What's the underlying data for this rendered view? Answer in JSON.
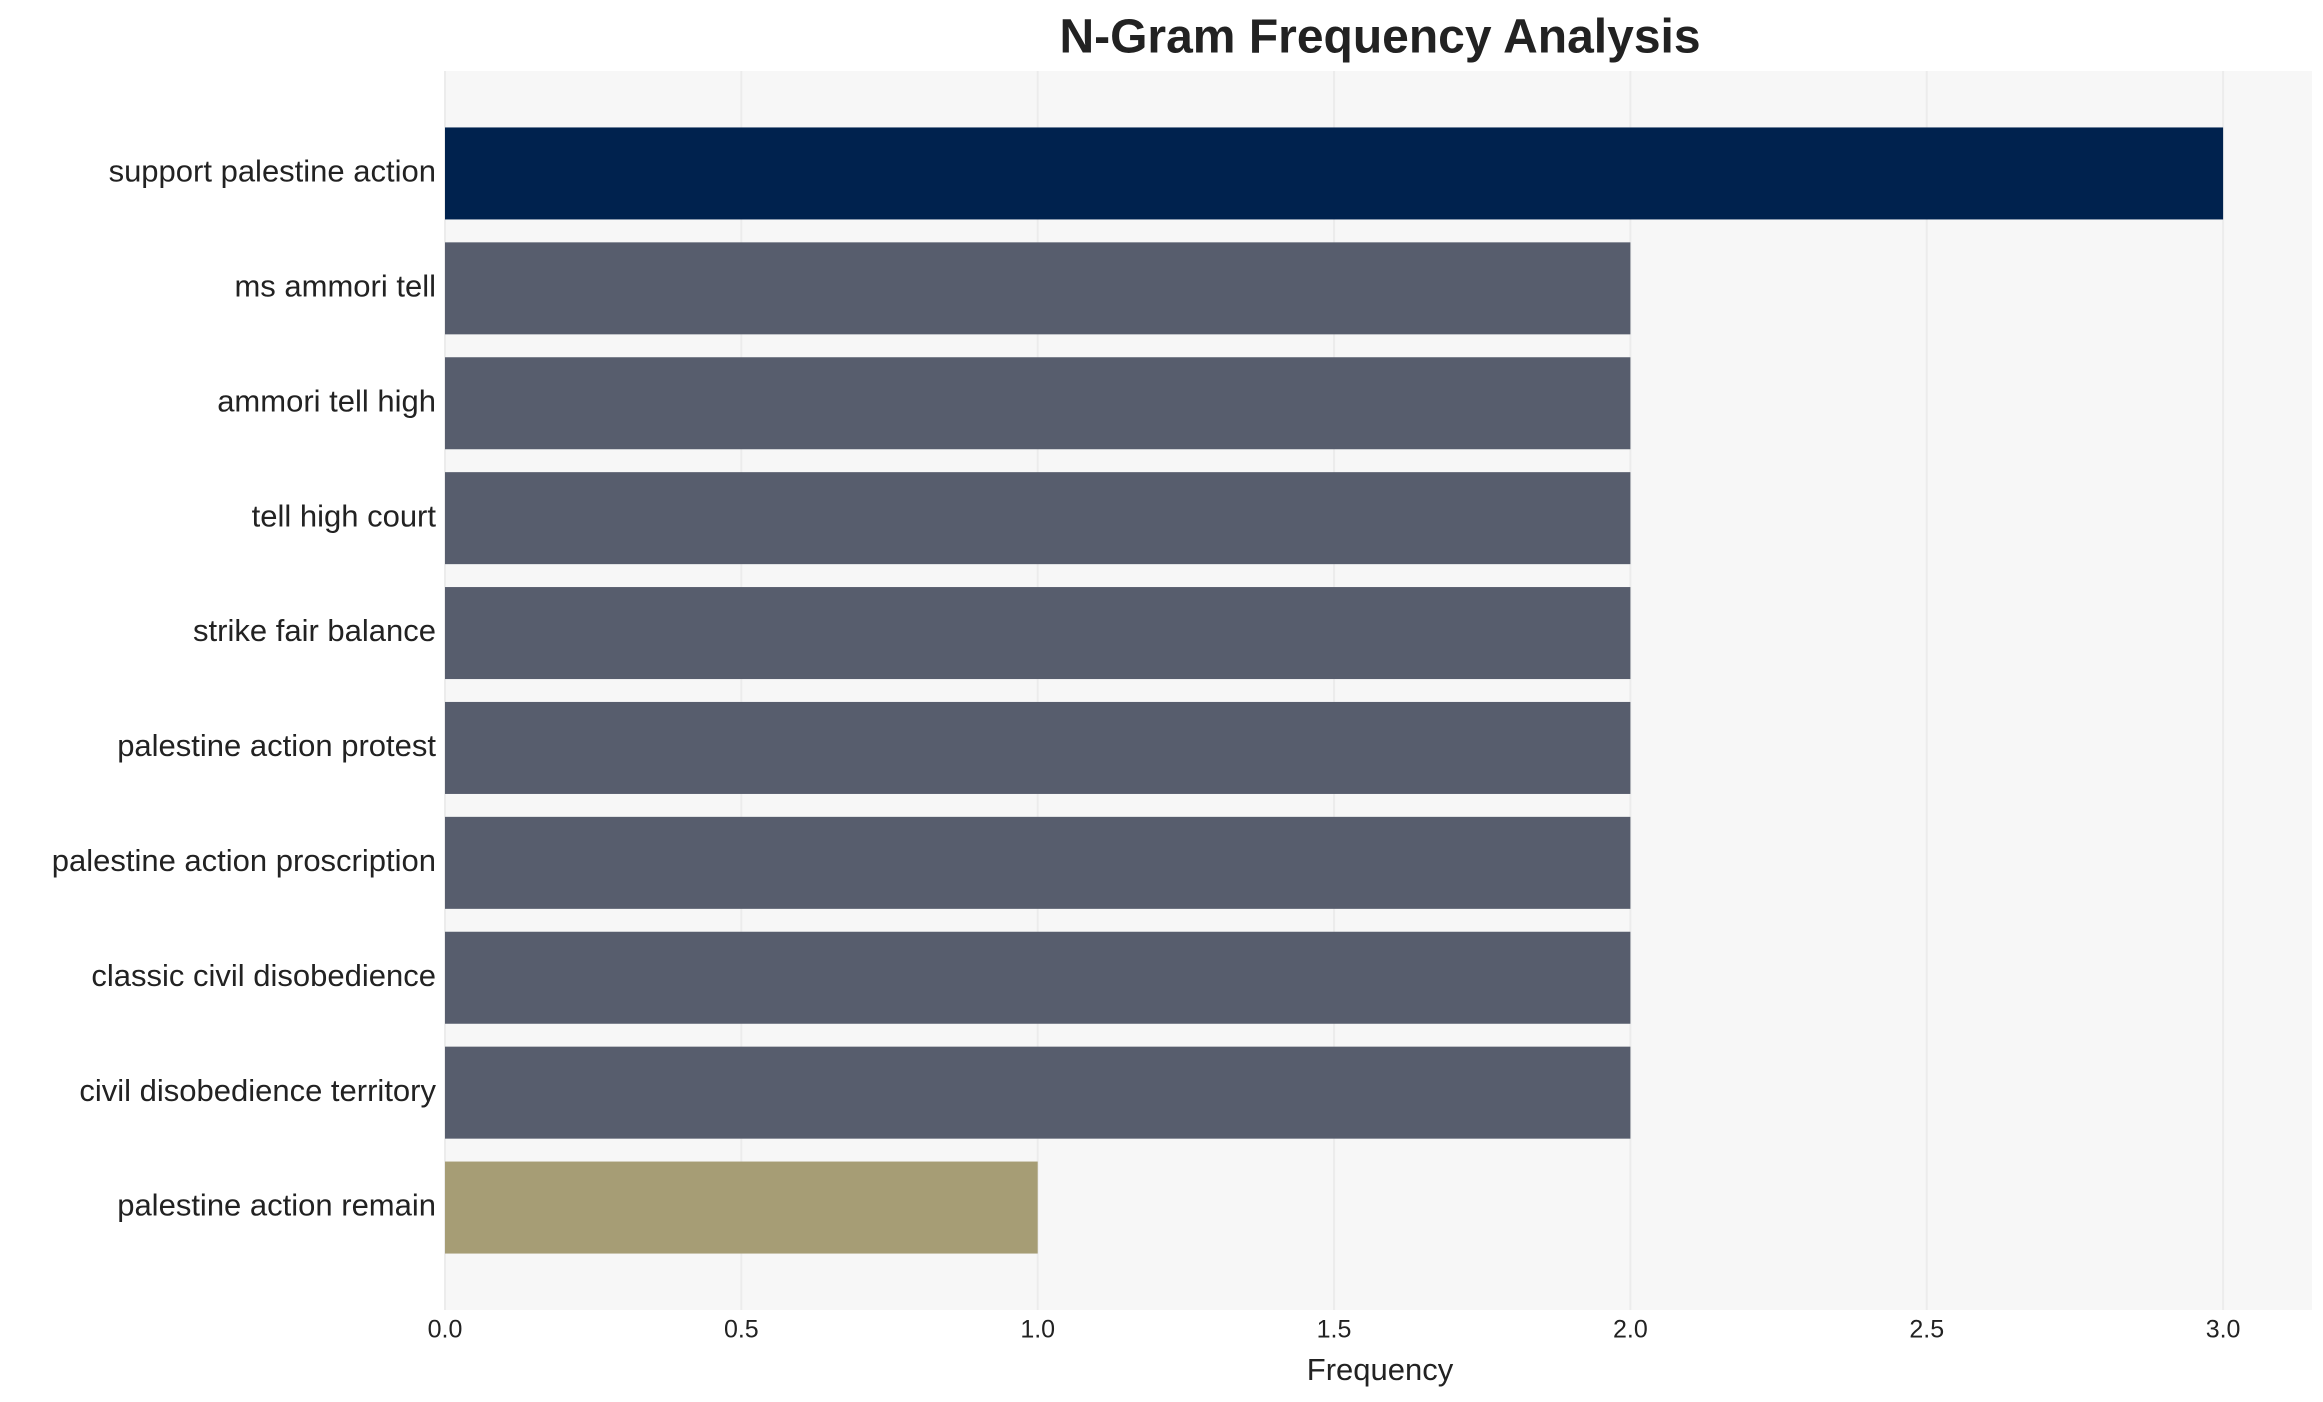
{
  "chart_data": {
    "type": "barh",
    "title": "N-Gram Frequency Analysis",
    "xlabel": "Frequency",
    "categories": [
      "support palestine action",
      "ms ammori tell",
      "ammori tell high",
      "tell high court",
      "strike fair balance",
      "palestine action protest",
      "palestine action proscription",
      "classic civil disobedience",
      "civil disobedience territory",
      "palestine action remain"
    ],
    "values": [
      3,
      2,
      2,
      2,
      2,
      2,
      2,
      2,
      2,
      1
    ],
    "colors": [
      "#00224e",
      "#575d6d",
      "#575d6d",
      "#575d6d",
      "#575d6d",
      "#575d6d",
      "#575d6d",
      "#575d6d",
      "#575d6d",
      "#a69d75"
    ],
    "xlim": [
      0,
      3.15
    ],
    "xticks": [
      {
        "value": 0,
        "label": "0.0"
      },
      {
        "value": 0.5,
        "label": "0.5"
      },
      {
        "value": 1,
        "label": "1.0"
      },
      {
        "value": 1.5,
        "label": "1.5"
      },
      {
        "value": 2,
        "label": "2.0"
      },
      {
        "value": 2.5,
        "label": "2.5"
      },
      {
        "value": 3,
        "label": "3.0"
      }
    ],
    "grid": true
  }
}
